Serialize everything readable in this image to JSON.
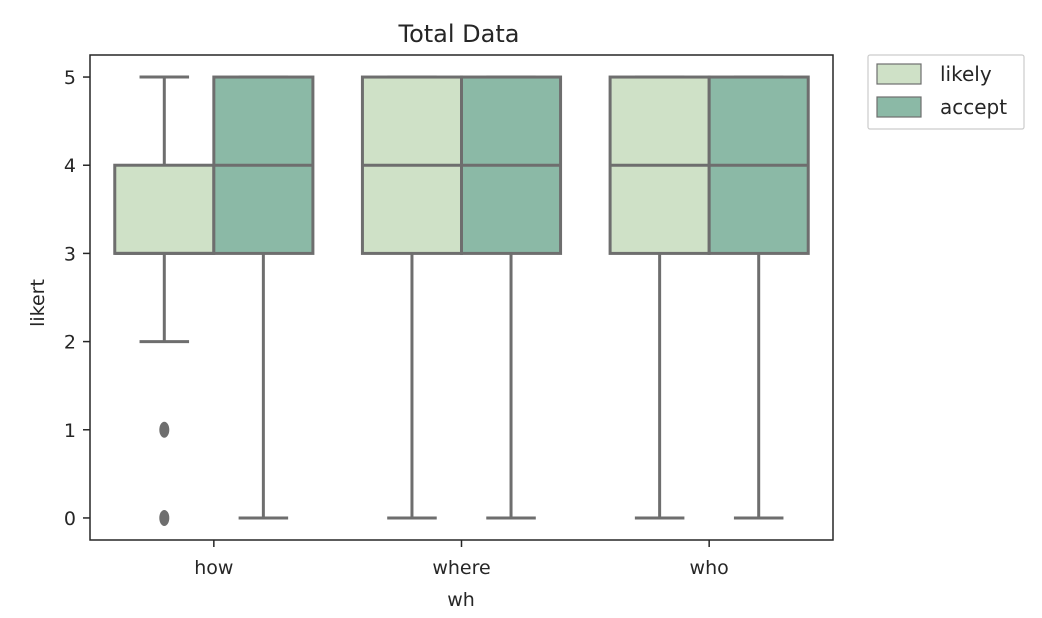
{
  "chart_data": {
    "type": "box",
    "title": "Total Data",
    "xlabel": "wh",
    "ylabel": "likert",
    "categories": [
      "how",
      "where",
      "who"
    ],
    "ylim": [
      -0.25,
      5.25
    ],
    "yticks": [
      0,
      1,
      2,
      3,
      4,
      5
    ],
    "grid": false,
    "legend_position": "outside top-right",
    "series": [
      {
        "name": "likely",
        "color": "#cfe1c7",
        "boxes": [
          {
            "whisker_low": 2,
            "q1": 3,
            "median": 3,
            "q3": 4,
            "whisker_high": 5,
            "outliers": [
              1,
              0
            ]
          },
          {
            "whisker_low": 0,
            "q1": 3,
            "median": 4,
            "q3": 5,
            "whisker_high": 5,
            "outliers": []
          },
          {
            "whisker_low": 0,
            "q1": 3,
            "median": 4,
            "q3": 5,
            "whisker_high": 5,
            "outliers": []
          }
        ]
      },
      {
        "name": "accept",
        "color": "#8bb9a6",
        "boxes": [
          {
            "whisker_low": 0,
            "q1": 3,
            "median": 4,
            "q3": 5,
            "whisker_high": 5,
            "outliers": []
          },
          {
            "whisker_low": 0,
            "q1": 3,
            "median": 4,
            "q3": 5,
            "whisker_high": 5,
            "outliers": []
          },
          {
            "whisker_low": 0,
            "q1": 3,
            "median": 4,
            "q3": 5,
            "whisker_high": 5,
            "outliers": []
          }
        ]
      }
    ]
  }
}
